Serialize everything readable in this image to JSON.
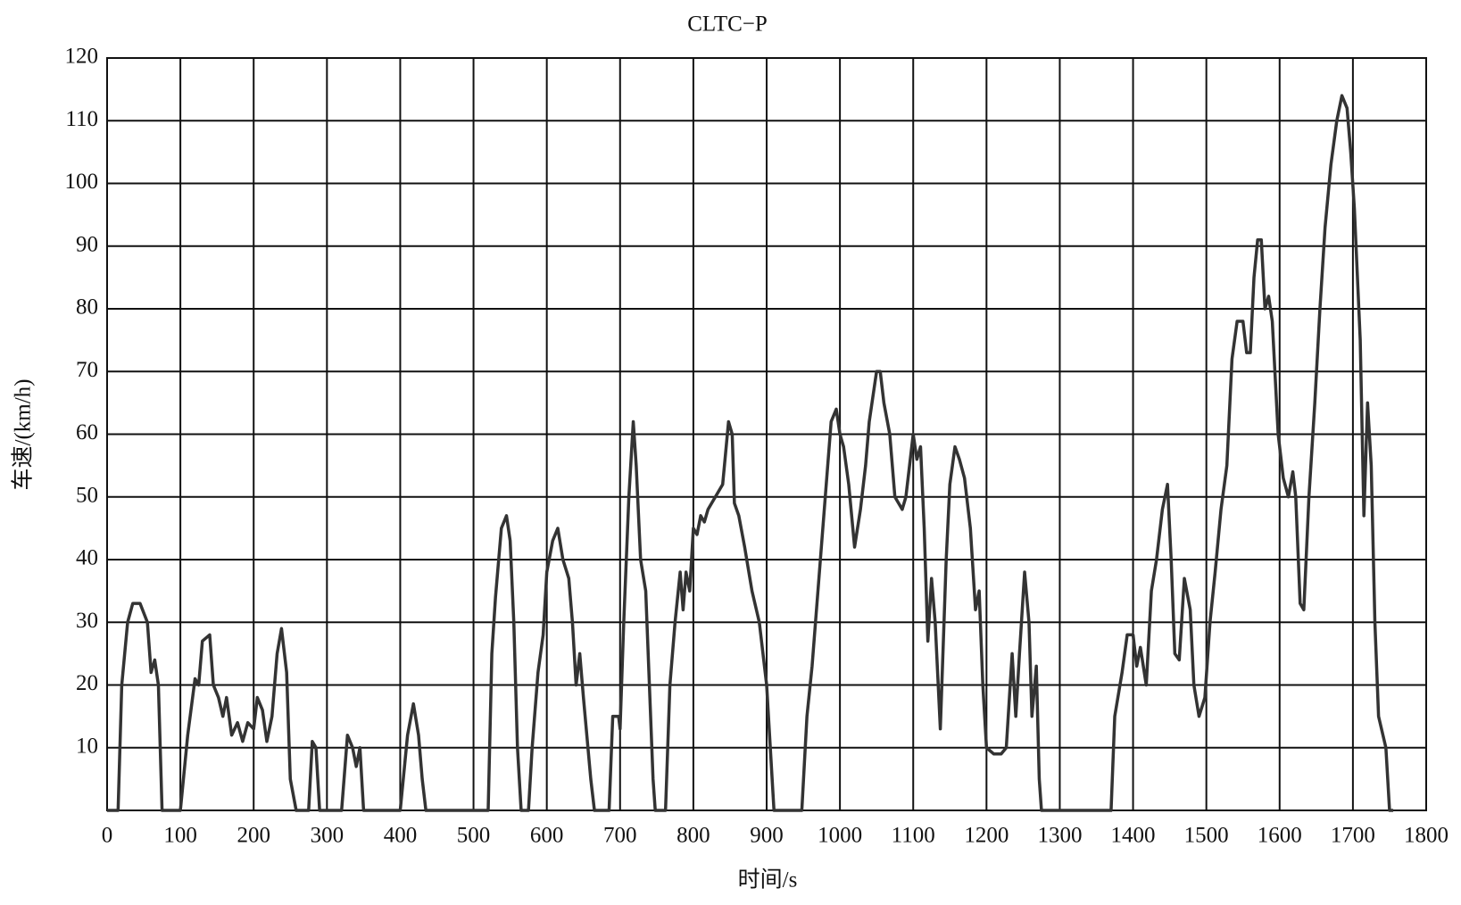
{
  "chart_data": {
    "type": "line",
    "title": "CLTC−P",
    "xlabel": "时间/s",
    "ylabel": "车速/(km/h)",
    "x": [
      0,
      15,
      20,
      28,
      35,
      45,
      55,
      60,
      65,
      70,
      75,
      100,
      110,
      120,
      125,
      130,
      140,
      145,
      152,
      158,
      163,
      170,
      178,
      185,
      192,
      200,
      205,
      212,
      218,
      225,
      232,
      238,
      245,
      250,
      258,
      275,
      280,
      285,
      290,
      320,
      328,
      335,
      340,
      345,
      350,
      400,
      410,
      418,
      425,
      430,
      435,
      520,
      525,
      530,
      538,
      545,
      550,
      555,
      560,
      565,
      575,
      580,
      588,
      595,
      600,
      608,
      615,
      622,
      630,
      635,
      640,
      645,
      650,
      660,
      665,
      685,
      690,
      698,
      700,
      705,
      712,
      718,
      722,
      728,
      735,
      740,
      745,
      748,
      762,
      768,
      775,
      782,
      786,
      790,
      795,
      800,
      805,
      810,
      815,
      820,
      830,
      840,
      848,
      853,
      856,
      862,
      870,
      880,
      890,
      900,
      905,
      910,
      948,
      955,
      962,
      970,
      980,
      988,
      995,
      1000,
      1005,
      1012,
      1020,
      1028,
      1035,
      1040,
      1050,
      1055,
      1060,
      1068,
      1075,
      1085,
      1090,
      1095,
      1100,
      1105,
      1110,
      1115,
      1120,
      1125,
      1130,
      1137,
      1145,
      1150,
      1157,
      1163,
      1170,
      1178,
      1185,
      1190,
      1195,
      1200,
      1210,
      1220,
      1227,
      1235,
      1240,
      1245,
      1252,
      1258,
      1262,
      1268,
      1272,
      1275,
      1370,
      1375,
      1385,
      1392,
      1400,
      1405,
      1410,
      1418,
      1425,
      1432,
      1440,
      1447,
      1452,
      1457,
      1463,
      1470,
      1478,
      1483,
      1490,
      1498,
      1505,
      1512,
      1520,
      1528,
      1535,
      1542,
      1550,
      1555,
      1560,
      1565,
      1570,
      1575,
      1580,
      1585,
      1590,
      1598,
      1605,
      1612,
      1618,
      1622,
      1628,
      1633,
      1640,
      1648,
      1655,
      1662,
      1670,
      1678,
      1685,
      1692,
      1697,
      1702,
      1710,
      1715,
      1720,
      1725,
      1730,
      1735,
      1745,
      1750,
      1755
    ],
    "values": [
      0,
      0,
      20,
      30,
      33,
      33,
      30,
      22,
      24,
      20,
      0,
      0,
      12,
      21,
      20,
      27,
      28,
      20,
      18,
      15,
      18,
      12,
      14,
      11,
      14,
      13,
      18,
      16,
      11,
      15,
      25,
      29,
      22,
      5,
      0,
      0,
      11,
      10,
      0,
      0,
      12,
      10,
      7,
      10,
      0,
      0,
      12,
      17,
      12,
      5,
      0,
      0,
      25,
      34,
      45,
      47,
      43,
      30,
      10,
      0,
      0,
      10,
      22,
      28,
      38,
      43,
      45,
      40,
      37,
      30,
      20,
      25,
      18,
      5,
      0,
      0,
      15,
      15,
      13,
      30,
      50,
      62,
      55,
      40,
      35,
      20,
      5,
      0,
      0,
      20,
      30,
      38,
      32,
      38,
      35,
      45,
      44,
      47,
      46,
      48,
      50,
      52,
      62,
      60,
      49,
      47,
      42,
      35,
      30,
      20,
      10,
      0,
      0,
      15,
      23,
      35,
      50,
      62,
      64,
      60,
      58,
      52,
      42,
      48,
      55,
      62,
      70,
      70,
      65,
      60,
      50,
      48,
      50,
      55,
      60,
      56,
      58,
      45,
      27,
      37,
      30,
      13,
      40,
      52,
      58,
      56,
      53,
      45,
      32,
      35,
      20,
      10,
      9,
      9,
      10,
      25,
      15,
      25,
      38,
      30,
      15,
      23,
      5,
      0,
      0,
      15,
      22,
      28,
      28,
      23,
      26,
      20,
      35,
      40,
      48,
      52,
      40,
      25,
      24,
      37,
      32,
      20,
      15,
      18,
      30,
      38,
      48,
      55,
      72,
      78,
      78,
      73,
      73,
      85,
      91,
      91,
      80,
      82,
      78,
      60,
      53,
      50,
      54,
      50,
      33,
      32,
      50,
      65,
      80,
      93,
      103,
      110,
      114,
      112,
      105,
      96,
      75,
      47,
      65,
      55,
      30,
      15,
      10,
      0,
      0
    ],
    "color": "#333333",
    "xlim": [
      0,
      1800
    ],
    "xticks": [
      0,
      100,
      200,
      300,
      400,
      500,
      600,
      700,
      800,
      900,
      1000,
      1100,
      1200,
      1300,
      1400,
      1500,
      1600,
      1700,
      1800
    ],
    "ylim": [
      0,
      120
    ],
    "yticks": [
      10,
      20,
      30,
      40,
      50,
      60,
      70,
      80,
      90,
      100,
      110,
      120
    ],
    "grid": true
  }
}
